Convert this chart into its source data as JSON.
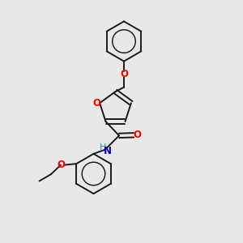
{
  "bg_color": "#e8e8e8",
  "bond_color": "#1a1a1a",
  "O_color": "#ff0000",
  "N_color": "#0000cd",
  "H_color": "#2e8b8b",
  "line_width": 1.4,
  "font_size_atom": 8.5,
  "fig_size": [
    3.0,
    3.0
  ],
  "dpi": 100,
  "xlim": [
    0,
    10
  ],
  "ylim": [
    0,
    10
  ]
}
